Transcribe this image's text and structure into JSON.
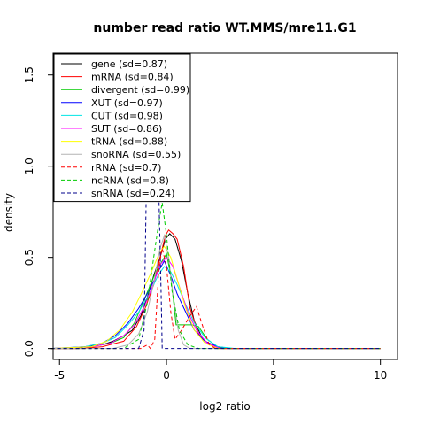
{
  "chart_data": {
    "type": "line",
    "title": "number read ratio WT.MMS/mre11.G1",
    "xlabel": "log2 ratio",
    "ylabel": "density",
    "xlim": [
      -5.3,
      10.8
    ],
    "ylim": [
      -0.06,
      1.62
    ],
    "x_ticks": [
      -5,
      0,
      5,
      10
    ],
    "y_ticks": [
      0.0,
      0.5,
      1.0,
      1.5
    ],
    "x_tick_labels": [
      "-5",
      "0",
      "5",
      "10"
    ],
    "y_tick_labels": [
      "0.0",
      "0.5",
      "1.0",
      "1.5"
    ],
    "legend_position": "top-left",
    "grid": false,
    "series": [
      {
        "name": "gene (sd=0.87)",
        "color": "#000000",
        "dash": "solid",
        "points": [
          [
            -5.4,
            0
          ],
          [
            -4.2,
            0.0
          ],
          [
            -3.8,
            0.01
          ],
          [
            -3.0,
            0.02
          ],
          [
            -2.5,
            0.04
          ],
          [
            -2.0,
            0.07
          ],
          [
            -1.6,
            0.1
          ],
          [
            -1.2,
            0.18
          ],
          [
            -0.9,
            0.28
          ],
          [
            -0.6,
            0.4
          ],
          [
            -0.3,
            0.5
          ],
          [
            -0.05,
            0.6
          ],
          [
            0.15,
            0.63
          ],
          [
            0.4,
            0.6
          ],
          [
            0.7,
            0.48
          ],
          [
            1.0,
            0.3
          ],
          [
            1.3,
            0.15
          ],
          [
            1.7,
            0.05
          ],
          [
            2.2,
            0.01
          ],
          [
            3.0,
            0.0
          ],
          [
            10,
            0.0
          ]
        ]
      },
      {
        "name": "mRNA (sd=0.84)",
        "color": "#ff0000",
        "dash": "solid",
        "points": [
          [
            -5.4,
            0
          ],
          [
            -4.0,
            0.0
          ],
          [
            -3.0,
            0.01
          ],
          [
            -2.0,
            0.04
          ],
          [
            -1.4,
            0.12
          ],
          [
            -1.0,
            0.22
          ],
          [
            -0.6,
            0.35
          ],
          [
            -0.3,
            0.5
          ],
          [
            -0.05,
            0.62
          ],
          [
            0.1,
            0.65
          ],
          [
            0.3,
            0.63
          ],
          [
            0.5,
            0.6
          ],
          [
            0.8,
            0.45
          ],
          [
            1.1,
            0.22
          ],
          [
            1.5,
            0.08
          ],
          [
            2.0,
            0.02
          ],
          [
            2.6,
            0.0
          ],
          [
            10,
            0.0
          ]
        ]
      },
      {
        "name": "divergent (sd=0.99)",
        "color": "#00cc00",
        "dash": "solid",
        "points": [
          [
            -5.4,
            0
          ],
          [
            -3.5,
            0.01
          ],
          [
            -2.6,
            0.03
          ],
          [
            -2.0,
            0.06
          ],
          [
            -1.5,
            0.14
          ],
          [
            -1.0,
            0.28
          ],
          [
            -0.5,
            0.42
          ],
          [
            -0.2,
            0.48
          ],
          [
            0.0,
            0.52
          ],
          [
            0.2,
            0.4
          ],
          [
            0.45,
            0.13
          ],
          [
            0.9,
            0.13
          ],
          [
            1.2,
            0.13
          ],
          [
            1.5,
            0.12
          ],
          [
            1.9,
            0.05
          ],
          [
            2.4,
            0.01
          ],
          [
            3.0,
            0.0
          ],
          [
            10,
            0.0
          ]
        ]
      },
      {
        "name": "XUT (sd=0.97)",
        "color": "#0000ff",
        "dash": "solid",
        "points": [
          [
            -5.4,
            0
          ],
          [
            -3.8,
            0.01
          ],
          [
            -3.0,
            0.03
          ],
          [
            -2.4,
            0.07
          ],
          [
            -1.8,
            0.14
          ],
          [
            -1.3,
            0.22
          ],
          [
            -0.8,
            0.32
          ],
          [
            -0.4,
            0.42
          ],
          [
            -0.1,
            0.48
          ],
          [
            0.2,
            0.4
          ],
          [
            0.5,
            0.3
          ],
          [
            0.9,
            0.2
          ],
          [
            1.3,
            0.1
          ],
          [
            1.8,
            0.04
          ],
          [
            2.4,
            0.01
          ],
          [
            3.0,
            0.0
          ],
          [
            10,
            0.0
          ]
        ]
      },
      {
        "name": "CUT (sd=0.98)",
        "color": "#00e5e5",
        "dash": "solid",
        "points": [
          [
            -5.4,
            0
          ],
          [
            -3.8,
            0.01
          ],
          [
            -3.0,
            0.03
          ],
          [
            -2.4,
            0.06
          ],
          [
            -1.8,
            0.13
          ],
          [
            -1.3,
            0.2
          ],
          [
            -0.8,
            0.3
          ],
          [
            -0.4,
            0.4
          ],
          [
            -0.1,
            0.45
          ],
          [
            0.2,
            0.42
          ],
          [
            0.5,
            0.35
          ],
          [
            0.9,
            0.24
          ],
          [
            1.3,
            0.14
          ],
          [
            1.8,
            0.06
          ],
          [
            2.4,
            0.01
          ],
          [
            3.2,
            0.0
          ],
          [
            10,
            0.0
          ]
        ]
      },
      {
        "name": "SUT (sd=0.86)",
        "color": "#ff00ff",
        "dash": "solid",
        "points": [
          [
            -5.4,
            0
          ],
          [
            -3.5,
            0.01
          ],
          [
            -2.6,
            0.03
          ],
          [
            -2.0,
            0.07
          ],
          [
            -1.5,
            0.13
          ],
          [
            -1.0,
            0.24
          ],
          [
            -0.6,
            0.36
          ],
          [
            -0.3,
            0.46
          ],
          [
            0.0,
            0.5
          ],
          [
            0.3,
            0.45
          ],
          [
            0.6,
            0.34
          ],
          [
            1.0,
            0.2
          ],
          [
            1.4,
            0.1
          ],
          [
            1.9,
            0.03
          ],
          [
            2.5,
            0.0
          ],
          [
            10,
            0.0
          ]
        ]
      },
      {
        "name": "tRNA (sd=0.88)",
        "color": "#ffff00",
        "dash": "solid",
        "points": [
          [
            -5.4,
            0
          ],
          [
            -3.5,
            0.01
          ],
          [
            -2.8,
            0.04
          ],
          [
            -2.2,
            0.1
          ],
          [
            -1.6,
            0.2
          ],
          [
            -1.1,
            0.32
          ],
          [
            -0.7,
            0.42
          ],
          [
            -0.35,
            0.52
          ],
          [
            -0.1,
            0.56
          ],
          [
            0.2,
            0.5
          ],
          [
            0.5,
            0.38
          ],
          [
            0.9,
            0.22
          ],
          [
            1.3,
            0.1
          ],
          [
            1.8,
            0.03
          ],
          [
            2.4,
            0.0
          ],
          [
            10,
            0.0
          ]
        ]
      },
      {
        "name": "snoRNA (sd=0.55)",
        "color": "#b3b3b3",
        "dash": "solid",
        "points": [
          [
            -5.4,
            0
          ],
          [
            -2.5,
            0.0
          ],
          [
            -1.8,
            0.02
          ],
          [
            -1.3,
            0.08
          ],
          [
            -0.9,
            0.2
          ],
          [
            -0.6,
            0.36
          ],
          [
            -0.3,
            0.55
          ],
          [
            -0.1,
            0.62
          ],
          [
            0.1,
            0.5
          ],
          [
            0.3,
            0.3
          ],
          [
            0.55,
            0.1
          ],
          [
            0.8,
            0.02
          ],
          [
            1.1,
            0.0
          ],
          [
            10,
            0.0
          ]
        ]
      },
      {
        "name": "rRNA (sd=0.7)",
        "color": "#ff0000",
        "dash": "dashed",
        "points": [
          [
            -5.4,
            0
          ],
          [
            -1.4,
            0.0
          ],
          [
            -1.2,
            0.0
          ],
          [
            -0.9,
            0.02
          ],
          [
            -0.75,
            0.0
          ],
          [
            -0.55,
            0.05
          ],
          [
            -0.35,
            0.45
          ],
          [
            -0.2,
            0.55
          ],
          [
            0.0,
            0.45
          ],
          [
            0.2,
            0.2
          ],
          [
            0.4,
            0.05
          ],
          [
            0.7,
            0.1
          ],
          [
            1.1,
            0.18
          ],
          [
            1.4,
            0.23
          ],
          [
            1.7,
            0.12
          ],
          [
            2.0,
            0.02
          ],
          [
            2.3,
            0.0
          ],
          [
            10,
            0.0
          ]
        ]
      },
      {
        "name": "ncRNA (sd=0.8)",
        "color": "#00cc00",
        "dash": "dashed",
        "points": [
          [
            -5.4,
            0
          ],
          [
            -2.0,
            0.0
          ],
          [
            -1.3,
            0.05
          ],
          [
            -0.9,
            0.25
          ],
          [
            -0.6,
            0.5
          ],
          [
            -0.35,
            0.7
          ],
          [
            -0.2,
            0.8
          ],
          [
            0.0,
            0.62
          ],
          [
            0.25,
            0.32
          ],
          [
            0.6,
            0.1
          ],
          [
            1.0,
            0.02
          ],
          [
            1.5,
            0.0
          ],
          [
            10,
            0.0
          ]
        ]
      },
      {
        "name": "snRNA (sd=0.24)",
        "color": "#00008b",
        "dash": "dashed",
        "points": [
          [
            -5.4,
            0
          ],
          [
            -1.3,
            0.0
          ],
          [
            -1.05,
            0.1
          ],
          [
            -0.95,
            0.82
          ],
          [
            -0.75,
            0.82
          ],
          [
            -0.55,
            0.82
          ],
          [
            -0.35,
            0.82
          ],
          [
            -0.25,
            0.3
          ],
          [
            -0.2,
            0.0
          ],
          [
            10,
            0.0
          ]
        ]
      }
    ]
  }
}
